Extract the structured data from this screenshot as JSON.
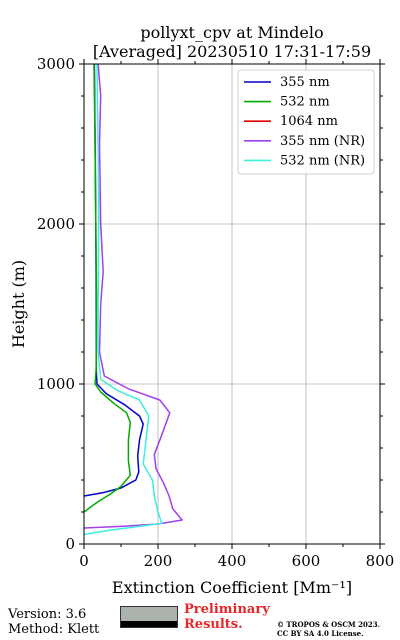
{
  "header": {
    "title_line1": "pollyxt_cpv at Mindelo",
    "title_line2": "[Averaged] 20230510 17:31-17:59"
  },
  "footer": {
    "version": "Version: 3.6",
    "method": "Method: Klett",
    "preliminary_line1": "Preliminary",
    "preliminary_line2": "Results.",
    "copyright_line1": "© TROPOS & OSCM 2023.",
    "copyright_line2": "CC BY SA 4.0 License.",
    "cc_logo_text": "cc BY SA"
  },
  "chart_data": {
    "type": "line",
    "xlabel": "Extinction Coefficient [Mm⁻¹]",
    "ylabel": "Height (m)",
    "xlim": [
      0,
      800
    ],
    "ylim": [
      0,
      3000
    ],
    "xticks": [
      "0",
      "200",
      "400",
      "600",
      "800"
    ],
    "yticks": [
      "0",
      "1000",
      "2000",
      "3000"
    ],
    "grid": true,
    "legend_position": "top-right",
    "series": [
      {
        "name": "355 nm",
        "color": "#0000cc",
        "points": [
          [
            0,
            300
          ],
          [
            50,
            320
          ],
          [
            100,
            350
          ],
          [
            140,
            400
          ],
          [
            148,
            450
          ],
          [
            145,
            550
          ],
          [
            150,
            650
          ],
          [
            160,
            750
          ],
          [
            150,
            800
          ],
          [
            110,
            870
          ],
          [
            60,
            940
          ],
          [
            35,
            1000
          ],
          [
            33,
            1100
          ],
          [
            33,
            1500
          ],
          [
            32,
            2000
          ],
          [
            30,
            2500
          ],
          [
            28,
            3000
          ]
        ]
      },
      {
        "name": "532 nm",
        "color": "#00aa00",
        "points": [
          [
            0,
            200
          ],
          [
            35,
            260
          ],
          [
            70,
            310
          ],
          [
            100,
            360
          ],
          [
            125,
            430
          ],
          [
            120,
            520
          ],
          [
            120,
            650
          ],
          [
            125,
            760
          ],
          [
            115,
            820
          ],
          [
            80,
            880
          ],
          [
            45,
            950
          ],
          [
            30,
            1000
          ],
          [
            33,
            1100
          ],
          [
            34,
            1500
          ],
          [
            32,
            2000
          ],
          [
            30,
            2500
          ],
          [
            27,
            3000
          ]
        ]
      },
      {
        "name": "1064 nm",
        "color": "#dd0000",
        "points": []
      },
      {
        "name": "355 nm (NR)",
        "color": "#a040ee",
        "points": [
          [
            0,
            100
          ],
          [
            100,
            110
          ],
          [
            200,
            125
          ],
          [
            265,
            150
          ],
          [
            240,
            220
          ],
          [
            230,
            300
          ],
          [
            215,
            380
          ],
          [
            195,
            470
          ],
          [
            190,
            560
          ],
          [
            210,
            680
          ],
          [
            232,
            820
          ],
          [
            205,
            900
          ],
          [
            120,
            970
          ],
          [
            55,
            1050
          ],
          [
            42,
            1200
          ],
          [
            45,
            1500
          ],
          [
            52,
            1700
          ],
          [
            45,
            2000
          ],
          [
            42,
            2500
          ],
          [
            45,
            2800
          ],
          [
            38,
            3000
          ]
        ]
      },
      {
        "name": "532 nm (NR)",
        "color": "#40eedd",
        "points": [
          [
            0,
            60
          ],
          [
            80,
            90
          ],
          [
            150,
            110
          ],
          [
            210,
            130
          ],
          [
            200,
            200
          ],
          [
            190,
            300
          ],
          [
            185,
            400
          ],
          [
            160,
            500
          ],
          [
            165,
            600
          ],
          [
            170,
            700
          ],
          [
            175,
            800
          ],
          [
            150,
            900
          ],
          [
            90,
            960
          ],
          [
            45,
            1030
          ],
          [
            38,
            1200
          ],
          [
            38,
            1500
          ],
          [
            40,
            2000
          ],
          [
            38,
            2500
          ],
          [
            35,
            3000
          ]
        ]
      }
    ]
  }
}
